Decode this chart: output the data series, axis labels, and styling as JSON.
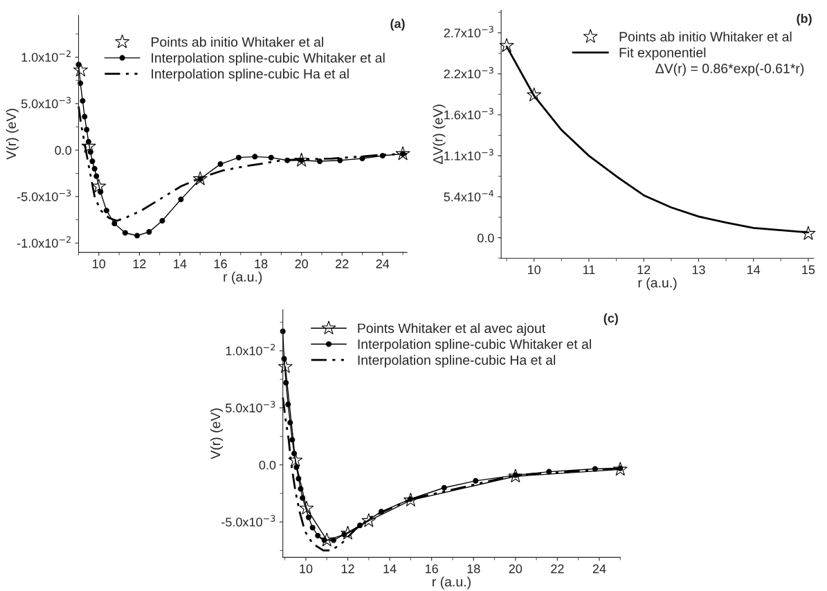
{
  "chart_data": [
    {
      "type": "line",
      "title": "(a)",
      "xlabel": "r (a.u.)",
      "ylabel": "V(r) (eV)",
      "xlim": [
        9,
        25.2
      ],
      "ylim": [
        -0.011,
        0.0145
      ],
      "xticks": [
        10,
        12,
        14,
        16,
        18,
        20,
        22,
        24
      ],
      "yticks": [
        {
          "value": -0.01,
          "label": "-1.0x10$^{−2}$"
        },
        {
          "value": -0.005,
          "label": "-5.0x10$^{−3}$"
        },
        {
          "value": 0,
          "label": "0.0"
        },
        {
          "value": 0.005,
          "label": "5.0x10$^{−3}$"
        },
        {
          "value": 0.01,
          "label": "1.0x10$^{−2}$"
        }
      ],
      "grid": false,
      "legend": "top right",
      "series": [
        {
          "name": "Points ab initio Whitaker et al",
          "type": "scatter",
          "marker": "star",
          "color": "#000000",
          "x": [
            9.1,
            9.5,
            10,
            15,
            20,
            25
          ],
          "values": [
            0.0086,
            0.0004,
            -0.0039,
            -0.0031,
            -0.0011,
            -0.0004
          ]
        },
        {
          "name": "Interpolation spline-cubic Whitaker et al",
          "marker": "circle",
          "line_style": "solid",
          "color": "#000000",
          "x": [
            9.0,
            9.09,
            9.2,
            9.3,
            9.4,
            9.49,
            9.59,
            9.68,
            9.79,
            9.88,
            10.08,
            10.38,
            10.77,
            11.3,
            11.89,
            12.48,
            13.13,
            14.05,
            15,
            16,
            16.9,
            17.7,
            18.5,
            19.3,
            20,
            20.9,
            21.9,
            23,
            24,
            25
          ],
          "values": [
            0.0092,
            0.0072,
            0.0053,
            0.0036,
            0.0022,
            0.0009,
            -0.0002,
            -0.0012,
            -0.002,
            -0.0028,
            -0.0045,
            -0.0065,
            -0.0079,
            -0.0089,
            -0.0092,
            -0.0088,
            -0.0076,
            -0.0053,
            -0.0031,
            -0.0015,
            -0.0008,
            -0.0007,
            -0.0008,
            -0.0011,
            -0.0011,
            -0.0012,
            -0.0011,
            -0.0009,
            -0.0006,
            -0.0004
          ]
        },
        {
          "name": "Interpolation spline-cubic Ha et al",
          "marker": "none",
          "line_style": "dashed",
          "color": "#000000",
          "x": [
            9.0,
            9.13,
            9.26,
            9.4,
            9.6,
            9.8,
            10.1,
            10.5,
            10.9,
            11.4,
            12.1,
            13,
            14.05,
            15,
            16.1,
            17.3,
            18.2,
            19,
            20,
            21.5,
            22.9,
            24,
            25.2
          ],
          "values": [
            0.0047,
            0.0027,
            0.0012,
            -0.0005,
            -0.0028,
            -0.0051,
            -0.0065,
            -0.0073,
            -0.0076,
            -0.0072,
            -0.0065,
            -0.0053,
            -0.0039,
            -0.003,
            -0.0022,
            -0.0017,
            -0.0014,
            -0.0011,
            -0.001,
            -0.0009,
            -0.0007,
            -0.0005,
            -0.0004
          ]
        }
      ]
    },
    {
      "type": "line",
      "title": "(b)",
      "xlabel": "r (a.u.)",
      "ylabel": "ΔV(r) (eV)",
      "xlim": [
        9.4,
        15.1
      ],
      "ylim": [
        -0.00027,
        0.003
      ],
      "xticks": [
        10,
        11,
        12,
        13,
        14,
        15
      ],
      "yticks": [
        {
          "value": 0,
          "label": "0.0"
        },
        {
          "value": 0.00054,
          "label": "5.4x10$^{−4}$"
        },
        {
          "value": 0.00108,
          "label": "1.1x10$^{−3}$"
        },
        {
          "value": 0.00162,
          "label": "1.6x10$^{−3}$"
        },
        {
          "value": 0.00216,
          "label": "2.2x10$^{−3}$"
        },
        {
          "value": 0.0027,
          "label": "2.7x10$^{−3}$"
        }
      ],
      "grid": false,
      "legend": "top right",
      "annotations": [
        "ΔV(r) = 0.86*exp(-0.61*r)"
      ],
      "series": [
        {
          "name": "Points ab initio Whitaker et al",
          "type": "scatter",
          "marker": "star",
          "color": "#000000",
          "x": [
            9.5,
            10,
            15
          ],
          "values": [
            0.00253,
            0.00188,
            5.5e-05
          ]
        },
        {
          "name": "Fit exponentiel",
          "marker": "none",
          "line_style": "solid",
          "color": "#000000",
          "x": [
            9.5,
            10,
            10.5,
            11,
            11.5,
            12,
            12.5,
            13,
            13.5,
            14,
            14.5,
            15
          ],
          "values": [
            0.00252,
            0.00187,
            0.00142,
            0.00108,
            0.00081,
            0.00056,
            0.0004,
            0.00028,
            0.0002,
            0.00013,
            0.0001,
            7e-05
          ]
        }
      ]
    },
    {
      "type": "line",
      "title": "(c)",
      "xlabel": "r (a.u.)",
      "ylabel": "V(r) (eV)",
      "xlim": [
        8.9,
        25
      ],
      "ylim": [
        -0.0081,
        0.0136
      ],
      "xticks": [
        10,
        12,
        14,
        16,
        18,
        20,
        22,
        24
      ],
      "yticks": [
        {
          "value": -0.005,
          "label": "-5.0x10$^{−3}$"
        },
        {
          "value": 0,
          "label": "0.0"
        },
        {
          "value": 0.005,
          "label": "5.0x10$^{−3}$"
        },
        {
          "value": 0.01,
          "label": "1.0x10$^{−2}$"
        }
      ],
      "grid": false,
      "legend": "top",
      "series": [
        {
          "name": "Points Whitaker et al avec ajout",
          "marker": "star",
          "line_style": "solid",
          "color": "#000000",
          "x": [
            9.02,
            9.5,
            10.03,
            11,
            12,
            13,
            15,
            20,
            25
          ],
          "values": [
            0.0086,
            0.0004,
            -0.0038,
            -0.0066,
            -0.006,
            -0.0049,
            -0.0031,
            -0.001,
            -0.0004
          ]
        },
        {
          "name": "Interpolation spline-cubic Whitaker et al",
          "marker": "circle",
          "line_style": "solid",
          "color": "#000000",
          "x": [
            8.9,
            8.96,
            9.05,
            9.15,
            9.25,
            9.35,
            9.44,
            9.55,
            9.65,
            9.75,
            9.84,
            10.13,
            10.32,
            10.57,
            10.88,
            11.32,
            11.83,
            12.58,
            13.6,
            14.98,
            16.6,
            18.1,
            20,
            21.6,
            23.8,
            25
          ],
          "values": [
            0.0117,
            0.0093,
            0.0072,
            0.0053,
            0.0037,
            0.0022,
            0.001,
            -0.0002,
            -0.0012,
            -0.0021,
            -0.0029,
            -0.0046,
            -0.0055,
            -0.0062,
            -0.0066,
            -0.0066,
            -0.0061,
            -0.0053,
            -0.0041,
            -0.003,
            -0.002,
            -0.0014,
            -0.0009,
            -0.0006,
            -0.00035,
            -0.0003
          ]
        },
        {
          "name": "Interpolation spline-cubic Ha et al",
          "marker": "none",
          "line_style": "dashed",
          "color": "#000000",
          "x": [
            8.9,
            9.03,
            9.18,
            9.3,
            9.5,
            9.7,
            9.95,
            10.32,
            10.83,
            11.2,
            11.7,
            12.33,
            13.09,
            15,
            20,
            25
          ],
          "values": [
            0.0059,
            0.004,
            0.0022,
            0.0001,
            -0.0023,
            -0.0041,
            -0.0058,
            -0.0069,
            -0.0075,
            -0.0075,
            -0.0069,
            -0.0057,
            -0.0046,
            -0.003,
            -0.0009,
            -0.0003
          ]
        }
      ]
    }
  ]
}
